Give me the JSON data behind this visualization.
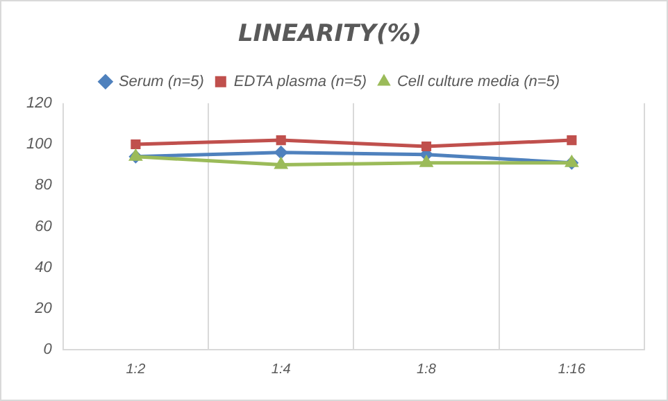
{
  "chart_data": {
    "type": "line",
    "title": "LINEARITY(%)",
    "categories": [
      "1:2",
      "1:4",
      "1:8",
      "1:16"
    ],
    "series": [
      {
        "name": "Serum (n=5)",
        "color": "#4f81bd",
        "values": [
          94,
          96,
          95,
          91
        ],
        "marker": "diamond"
      },
      {
        "name": "EDTA plasma (n=5)",
        "color": "#c0504d",
        "values": [
          100,
          102,
          99,
          102
        ],
        "marker": "square"
      },
      {
        "name": "Cell culture media (n=5)",
        "color": "#9bbb59",
        "values": [
          94,
          90,
          91,
          91
        ],
        "marker": "triangle"
      }
    ],
    "ylim": [
      0,
      120
    ],
    "yticks": [
      0,
      20,
      40,
      60,
      80,
      100,
      120
    ],
    "grid": "x",
    "legend": "top",
    "line_style": "solid"
  }
}
